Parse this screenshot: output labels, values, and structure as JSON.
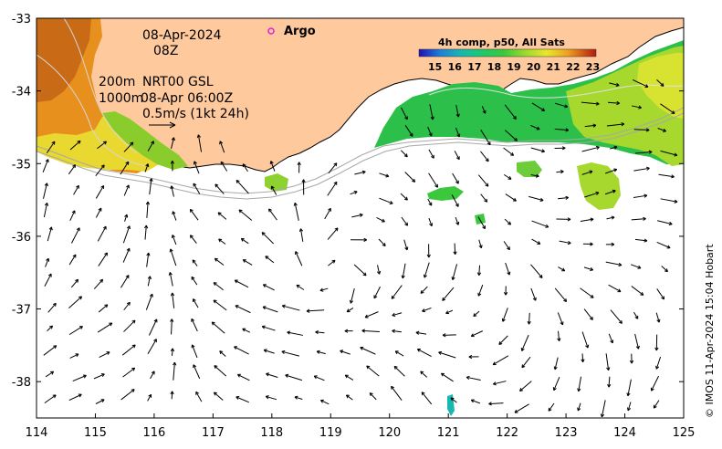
{
  "map": {
    "date": "08-Apr-2024",
    "hour": "08Z",
    "contour_label_200": "200m",
    "contour_label_1000": "1000m",
    "product": "NRT00 GSL",
    "product_time": "08-Apr 06:00Z",
    "scale_label": "0.5m/s (1kt 24h)",
    "argo_label": "Argo",
    "credit": "© IMOS 11-Apr-2024 15:04 Hobart",
    "colors": {
      "land": "#fdc99d",
      "ocean": "#ffffff",
      "coast": "#000000",
      "contour": "#a8a8a8",
      "argo_marker": "#e020d0"
    }
  },
  "axes": {
    "x_ticks": [
      "114",
      "115",
      "116",
      "117",
      "118",
      "119",
      "120",
      "121",
      "122",
      "123",
      "124",
      "125"
    ],
    "y_ticks": [
      "-33",
      "-34",
      "-35",
      "-36",
      "-37",
      "-38"
    ],
    "x_range": [
      114,
      125
    ],
    "y_range": [
      -38.5,
      -33
    ]
  },
  "legend": {
    "title": "4h comp, p50, All Sats",
    "ticks": [
      "15",
      "16",
      "17",
      "18",
      "19",
      "20",
      "21",
      "22",
      "23"
    ],
    "colormap": [
      "#1f0fb5",
      "#1f7fd8",
      "#18b8b0",
      "#1ec86c",
      "#3cc83c",
      "#9ed82e",
      "#e8e82a",
      "#f0a020",
      "#e0601a",
      "#b01c10"
    ]
  },
  "icons": {
    "argo": "argo-float-icon",
    "scale_arrow": "scale-arrow-icon"
  }
}
